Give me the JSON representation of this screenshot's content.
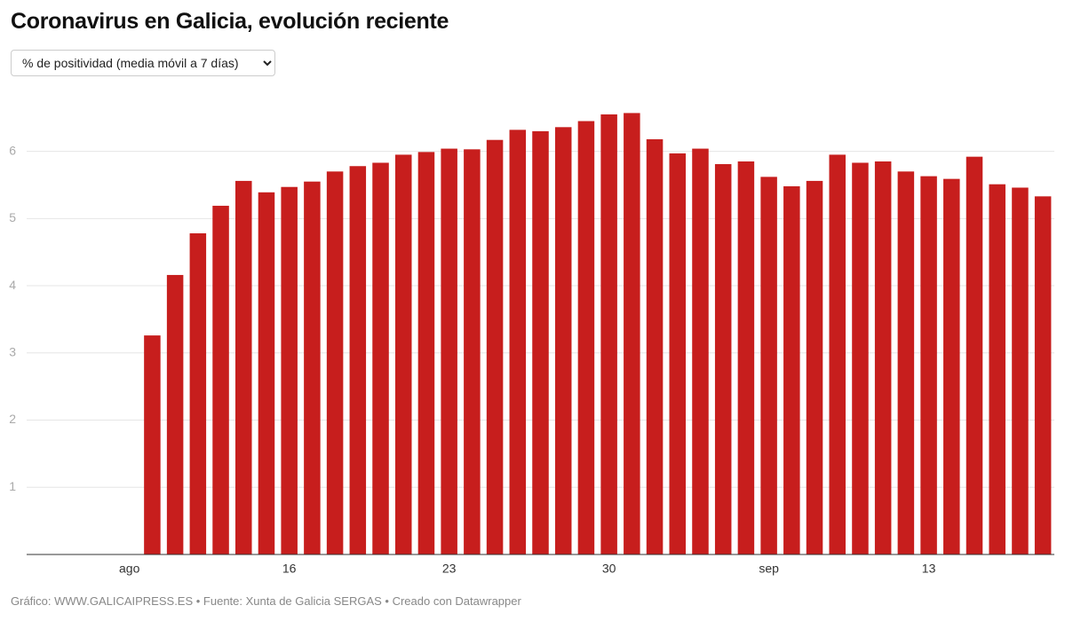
{
  "chart_data": {
    "type": "bar",
    "title": "Coronavirus en Galicia, evolución reciente",
    "categories": [
      null,
      null,
      null,
      null,
      "ago",
      null,
      null,
      null,
      null,
      null,
      null,
      "16",
      null,
      null,
      null,
      null,
      null,
      null,
      "23",
      null,
      null,
      null,
      null,
      null,
      null,
      "30",
      null,
      null,
      null,
      null,
      null,
      null,
      "sep",
      null,
      null,
      null,
      null,
      null,
      null,
      "13",
      null,
      null,
      null,
      null,
      null
    ],
    "values": [
      null,
      null,
      null,
      null,
      null,
      3.26,
      4.16,
      4.78,
      5.19,
      5.56,
      5.39,
      5.47,
      5.55,
      5.7,
      5.78,
      5.83,
      5.95,
      5.99,
      6.04,
      6.03,
      6.17,
      6.32,
      6.3,
      6.36,
      6.45,
      6.55,
      6.57,
      6.18,
      5.97,
      6.04,
      5.81,
      5.85,
      5.62,
      5.48,
      5.56,
      5.95,
      5.83,
      5.85,
      5.7,
      5.63,
      5.59,
      5.92,
      5.51,
      5.46,
      5.33
    ],
    "color": "#c71e1d",
    "ylim": [
      0,
      6.8
    ],
    "yticks": [
      1,
      2,
      3,
      4,
      5,
      6
    ],
    "grid": true
  },
  "dropdown": {
    "selected": "% de positividad (media móvil a 7 días)"
  },
  "footer": "Gráfico: WWW.GALICAIPRESS.ES • Fuente: Xunta de Galicia SERGAS • Creado con Datawrapper"
}
